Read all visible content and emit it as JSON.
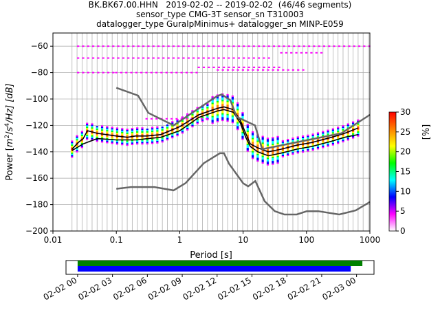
{
  "title_lines": [
    "BK.BK67.00.HHN   2019-02-02 -- 2019-02-02  (46/46 segments)",
    "sensor_type CMG-3T sensor_sn T310003",
    "datalogger_type GuralpMinimus+ datalogger_sn MINP-E059"
  ],
  "chart_data": [
    {
      "type": "heatmap",
      "xlabel": "Period [s]",
      "ylabel": "Power [m²/s⁴/Hz] [dB]",
      "ylabel_parts": {
        "pre": "Power [",
        "m": "m",
        "exp_m": "2",
        "mid": "/",
        "s": "s",
        "exp_s": "4",
        "post": "/Hz] [dB]"
      },
      "x_scale": "log",
      "xlim": [
        0.01,
        1000
      ],
      "ylim": [
        -200,
        -50
      ],
      "x_ticks": [
        0.01,
        0.1,
        1,
        10,
        100,
        1000
      ],
      "x_tick_labels": [
        "0.01",
        "0.1",
        "1",
        "10",
        "100",
        "1000"
      ],
      "y_ticks": [
        -60,
        -80,
        -100,
        -120,
        -140,
        -160,
        -180,
        -200
      ],
      "y_tick_labels": [
        "−60",
        "−80",
        "−100",
        "−120",
        "−140",
        "−160",
        "−180",
        "−200"
      ],
      "grid": true,
      "colorbar": {
        "label": "[%]",
        "range": [
          0,
          30
        ],
        "ticks": [
          0,
          5,
          10,
          15,
          20,
          25,
          30
        ],
        "tick_labels": [
          "0",
          "5",
          "10",
          "15",
          "20",
          "25",
          "30"
        ],
        "colormap": [
          "#ffffff",
          "#ff00ff",
          "#0000ff",
          "#00ffff",
          "#00ff00",
          "#ffff00",
          "#ff8000",
          "#ff0000"
        ]
      },
      "series": [
        {
          "name": "",
          "role": "mode",
          "color": "#000000",
          "x": [
            0.02,
            0.025,
            0.03,
            0.035,
            0.05,
            0.1,
            0.15,
            0.2,
            0.3,
            0.5,
            1,
            2,
            3,
            4,
            5,
            7,
            9,
            11,
            13,
            17,
            25,
            40,
            70,
            120,
            250,
            400,
            650
          ],
          "y": [
            -138,
            -133,
            -130,
            -124,
            -126,
            -128,
            -129,
            -128,
            -128,
            -127,
            -121,
            -112,
            -109,
            -107,
            -106,
            -108,
            -116,
            -126,
            -134,
            -137,
            -140,
            -138,
            -135,
            -133,
            -129,
            -126,
            -122
          ]
        },
        {
          "name": "",
          "role": "mean",
          "color": "#000000",
          "x": [
            0.02,
            0.03,
            0.05,
            0.1,
            0.2,
            0.5,
            1,
            2,
            3,
            4,
            5,
            7,
            9,
            11,
            13,
            17,
            25,
            40,
            70,
            120,
            250,
            400,
            650
          ],
          "y": [
            -139,
            -134,
            -130,
            -131,
            -131,
            -129,
            -124,
            -114,
            -111,
            -109,
            -108,
            -110,
            -118,
            -129,
            -136,
            -140,
            -143,
            -141,
            -138,
            -136,
            -132,
            -129,
            -127
          ]
        },
        {
          "name": "",
          "role": "NHNM",
          "color": "#666666",
          "x": [
            0.1,
            0.22,
            0.32,
            0.8,
            3.8,
            4.6,
            6.3,
            7.9,
            15.4,
            20,
            354.8,
            1000
          ],
          "y": [
            -91.5,
            -97.4,
            -110.5,
            -120,
            -98,
            -96.5,
            -101,
            -113.5,
            -120,
            -138,
            -126,
            -112
          ]
        },
        {
          "name": "",
          "role": "NLNM",
          "color": "#666666",
          "x": [
            0.1,
            0.17,
            0.4,
            0.8,
            1.24,
            2.4,
            4.3,
            5,
            6,
            10,
            12,
            15.6,
            21.9,
            31.6,
            45,
            70,
            101,
            154,
            328,
            600,
            1000
          ],
          "y": [
            -168,
            -166.7,
            -166.7,
            -169.2,
            -163.7,
            -148.6,
            -141.1,
            -141.1,
            -149,
            -163.8,
            -166.2,
            -162.1,
            -177.5,
            -185,
            -187.5,
            -187.5,
            -185,
            -185,
            -187.5,
            -184.4,
            -178
          ]
        }
      ]
    },
    {
      "type": "timeline",
      "xlim": [
        "2019-02-01T23:00",
        "2019-02-03T01:30"
      ],
      "x_ticks": [
        "2019-02-02T00:00",
        "2019-02-02T03:00",
        "2019-02-02T06:00",
        "2019-02-02T09:00",
        "2019-02-02T12:00",
        "2019-02-02T15:00",
        "2019-02-02T18:00",
        "2019-02-02T21:00",
        "2019-02-03T00:00"
      ],
      "x_tick_labels": [
        "02-02 00",
        "02-02 03",
        "02-02 06",
        "02-02 09",
        "02-02 12",
        "02-02 15",
        "02-02 18",
        "02-02 21",
        "02-03 00"
      ],
      "bars": [
        {
          "label": "",
          "start": "2019-02-02T00:00",
          "end": "2019-02-03T00:30",
          "color": "#008000"
        },
        {
          "label": "",
          "start": "2019-02-02T00:00",
          "end": "2019-02-02T23:30",
          "color": "#0000ff"
        }
      ]
    }
  ]
}
